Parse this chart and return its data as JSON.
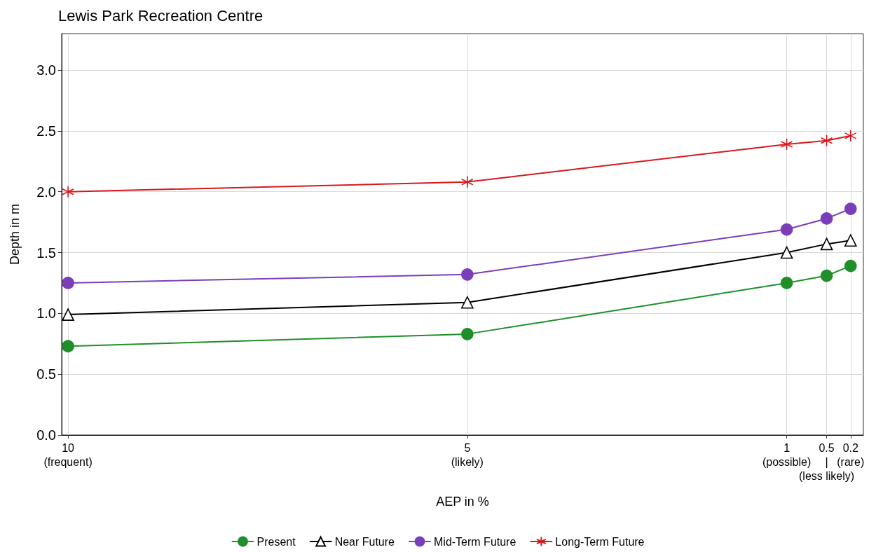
{
  "chart_data": {
    "type": "line",
    "title": "Lewis Park Recreation Centre",
    "xlabel": "AEP in %",
    "ylabel": "Depth in m",
    "x": [
      10,
      5,
      1,
      0.5,
      0.2
    ],
    "xlim": [
      10.08,
      0.04
    ],
    "xticks": [
      {
        "value": 10,
        "label": "10\n(frequent)"
      },
      {
        "value": 5,
        "label": "5\n(likely)"
      },
      {
        "value": 1,
        "label": "1\n(possible)"
      },
      {
        "value": 0.5,
        "label": "0.5\n|\n(less likely)"
      },
      {
        "value": 0.2,
        "label": "0.2\n(rare)"
      }
    ],
    "ylim": [
      0,
      3.3
    ],
    "yticks": [
      {
        "value": 0,
        "label": "0.0"
      },
      {
        "value": 0.5,
        "label": "0.5"
      },
      {
        "value": 1,
        "label": "1.0"
      },
      {
        "value": 1.5,
        "label": "1.5"
      },
      {
        "value": 2,
        "label": "2.0"
      },
      {
        "value": 2.5,
        "label": "2.5"
      },
      {
        "value": 3,
        "label": "3.0"
      }
    ],
    "grid": true,
    "legend": "bottom",
    "line_style": "solid",
    "series": [
      {
        "name": "Present",
        "color": "#1f8f2a",
        "marker": "circle",
        "values": [
          0.73,
          0.83,
          1.25,
          1.31,
          1.39
        ]
      },
      {
        "name": "Near Future",
        "color": "#000000",
        "marker": "triangle",
        "values": [
          0.99,
          1.09,
          1.5,
          1.57,
          1.6
        ]
      },
      {
        "name": "Mid-Term Future",
        "color": "#7a3fb8",
        "marker": "circle",
        "values": [
          1.25,
          1.32,
          1.69,
          1.78,
          1.86
        ]
      },
      {
        "name": "Long-Term Future",
        "color": "#d7191c",
        "marker": "cross",
        "values": [
          2.0,
          2.08,
          2.39,
          2.42,
          2.46
        ]
      }
    ]
  }
}
